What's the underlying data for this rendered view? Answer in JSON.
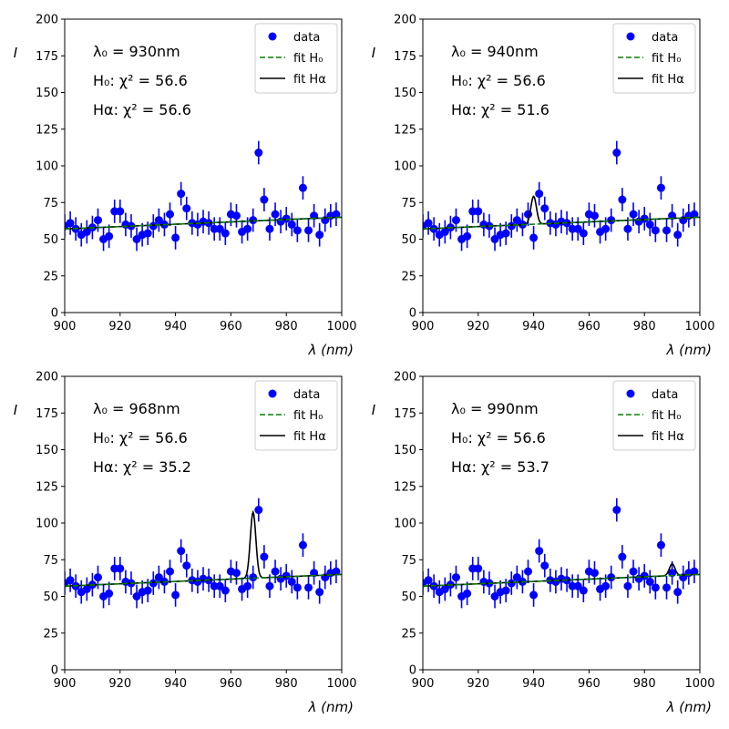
{
  "figure": {
    "title": ""
  },
  "chart_data": [
    {
      "type": "scatter",
      "panel": "top-left",
      "xlabel": "λ (nm)",
      "ylabel": "I",
      "xlim": [
        900,
        1000
      ],
      "ylim": [
        0,
        200
      ],
      "xticks": [
        900,
        920,
        940,
        960,
        980,
        1000
      ],
      "yticks": [
        0,
        25,
        50,
        75,
        100,
        125,
        150,
        175,
        200
      ],
      "annotations": [
        "λ₀ = 930nm",
        "H₀: χ² =  56.6",
        "Hα: χ² =  56.6"
      ],
      "legend": {
        "position": "top-right",
        "entries": [
          "data",
          "fit H₀",
          "fit Hα"
        ]
      },
      "line_peak": {
        "center": 930,
        "amplitude": 0
      }
    },
    {
      "type": "scatter",
      "panel": "top-right",
      "xlabel": "λ (nm)",
      "ylabel": "I",
      "xlim": [
        900,
        1000
      ],
      "ylim": [
        0,
        200
      ],
      "xticks": [
        900,
        920,
        940,
        960,
        980,
        1000
      ],
      "yticks": [
        0,
        25,
        50,
        75,
        100,
        125,
        150,
        175,
        200
      ],
      "annotations": [
        "λ₀ = 940nm",
        "H₀: χ² =  56.6",
        "Hα: χ² =  51.6"
      ],
      "legend": {
        "position": "top-right",
        "entries": [
          "data",
          "fit H₀",
          "fit Hα"
        ]
      },
      "line_peak": {
        "center": 940,
        "amplitude": 19
      }
    },
    {
      "type": "scatter",
      "panel": "bottom-left",
      "xlabel": "λ (nm)",
      "ylabel": "I",
      "xlim": [
        900,
        1000
      ],
      "ylim": [
        0,
        200
      ],
      "xticks": [
        900,
        920,
        940,
        960,
        980,
        1000
      ],
      "yticks": [
        0,
        25,
        50,
        75,
        100,
        125,
        150,
        175,
        200
      ],
      "annotations": [
        "λ₀ = 968nm",
        "H₀: χ² =  56.6",
        "Hα: χ² =  35.2"
      ],
      "legend": {
        "position": "top-right",
        "entries": [
          "data",
          "fit H₀",
          "fit Hα"
        ]
      },
      "line_peak": {
        "center": 968,
        "amplitude": 45
      }
    },
    {
      "type": "scatter",
      "panel": "bottom-right",
      "xlabel": "λ (nm)",
      "ylabel": "I",
      "xlim": [
        900,
        1000
      ],
      "ylim": [
        0,
        200
      ],
      "xticks": [
        900,
        920,
        940,
        960,
        980,
        1000
      ],
      "yticks": [
        0,
        25,
        50,
        75,
        100,
        125,
        150,
        175,
        200
      ],
      "annotations": [
        "λ₀ = 990nm",
        "H₀: χ² =  56.6",
        "Hα: χ² =  53.7"
      ],
      "legend": {
        "position": "top-right",
        "entries": [
          "data",
          "fit H₀",
          "fit Hα"
        ]
      },
      "line_peak": {
        "center": 990,
        "amplitude": 8
      }
    }
  ],
  "observations": {
    "x": [
      900,
      902,
      904,
      906,
      908,
      910,
      912,
      914,
      916,
      918,
      920,
      922,
      924,
      926,
      928,
      930,
      932,
      934,
      936,
      938,
      940,
      942,
      944,
      946,
      948,
      950,
      952,
      954,
      956,
      958,
      960,
      962,
      964,
      966,
      968,
      970,
      972,
      974,
      976,
      978,
      980,
      982,
      984,
      986,
      988,
      990,
      992,
      994,
      996,
      998
    ],
    "y": [
      59,
      61,
      57,
      53,
      55,
      58,
      63,
      50,
      52,
      69,
      69,
      60,
      59,
      50,
      53,
      54,
      59,
      63,
      60,
      67,
      51,
      81,
      71,
      61,
      60,
      62,
      61,
      57,
      57,
      54,
      67,
      66,
      55,
      57,
      63,
      109,
      77,
      57,
      67,
      62,
      64,
      60,
      56,
      85,
      56,
      66,
      53,
      63,
      66,
      67
    ],
    "yerr": 8
  },
  "fit_h0": {
    "intercept": 57,
    "slope": 0.08
  },
  "colors": {
    "data": "#0000ff",
    "fit_h0": "#008000",
    "fit_ha": "#000000"
  }
}
